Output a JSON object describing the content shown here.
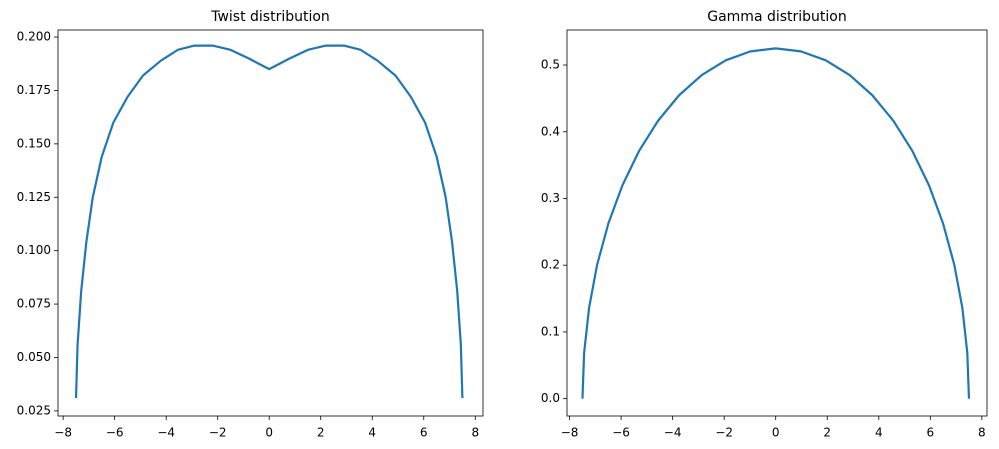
{
  "chart_data": [
    {
      "type": "line",
      "title": "Twist distribution",
      "x": [
        -7.5,
        -7.44,
        -7.3,
        -7.1,
        -6.85,
        -6.5,
        -6.05,
        -5.5,
        -4.9,
        -4.2,
        -3.55,
        -2.9,
        -2.2,
        -1.5,
        -0.8,
        0,
        0.8,
        1.5,
        2.2,
        2.9,
        3.55,
        4.2,
        4.9,
        5.5,
        6.05,
        6.5,
        6.85,
        7.1,
        7.3,
        7.44,
        7.5
      ],
      "series": [
        {
          "color": "#1f77b4",
          "values": [
            0.031,
            0.056,
            0.081,
            0.104,
            0.125,
            0.144,
            0.16,
            0.172,
            0.182,
            0.189,
            0.194,
            0.196,
            0.196,
            0.194,
            0.19,
            0.185,
            0.19,
            0.194,
            0.196,
            0.196,
            0.194,
            0.189,
            0.182,
            0.172,
            0.16,
            0.144,
            0.125,
            0.104,
            0.081,
            0.056,
            0.031
          ]
        }
      ],
      "xlim": [
        -8.2,
        8.3
      ],
      "xticks": [
        {
          "value": -8,
          "label": "−8"
        },
        {
          "value": -6,
          "label": "−6"
        },
        {
          "value": -4,
          "label": "−4"
        },
        {
          "value": -2,
          "label": "−2"
        },
        0,
        2,
        4,
        6,
        8
      ],
      "ylim": [
        0.0226,
        0.2033
      ],
      "yticks": [
        {
          "value": 0.025,
          "label": "0.025"
        },
        {
          "value": 0.05,
          "label": "0.050"
        },
        {
          "value": 0.075,
          "label": "0.075"
        },
        {
          "value": 0.1,
          "label": "0.100"
        },
        {
          "value": 0.125,
          "label": "0.125"
        },
        {
          "value": 0.15,
          "label": "0.150"
        },
        {
          "value": 0.175,
          "label": "0.175"
        },
        {
          "value": 0.2,
          "label": "0.200"
        }
      ]
    },
    {
      "type": "line",
      "title": "Gamma distribution",
      "x": [
        -7.5,
        -7.436,
        -7.244,
        -6.929,
        -6.495,
        -5.95,
        -5.303,
        -4.566,
        -3.75,
        -2.87,
        -1.941,
        -0.979,
        0,
        0.979,
        1.941,
        2.87,
        3.75,
        4.566,
        5.303,
        5.95,
        6.495,
        6.929,
        7.244,
        7.436,
        7.5
      ],
      "series": [
        {
          "color": "#1f77b4",
          "values": [
            0,
            0.0685,
            0.1359,
            0.2009,
            0.2625,
            0.3196,
            0.3712,
            0.4165,
            0.4547,
            0.485,
            0.5071,
            0.5205,
            0.525,
            0.5205,
            0.5071,
            0.485,
            0.4547,
            0.4165,
            0.3712,
            0.3196,
            0.2625,
            0.2009,
            0.1359,
            0.0685,
            0
          ]
        }
      ],
      "xlim": [
        -8.1,
        8.2
      ],
      "xticks": [
        {
          "value": -8,
          "label": "−8"
        },
        {
          "value": -6,
          "label": "−6"
        },
        {
          "value": -4,
          "label": "−4"
        },
        {
          "value": -2,
          "label": "−2"
        },
        0,
        2,
        4,
        6,
        8
      ],
      "ylim": [
        -0.026,
        0.5525
      ],
      "yticks": [
        {
          "value": 0,
          "label": "0.0"
        },
        0.1,
        0.2,
        0.3,
        0.4,
        0.5
      ]
    }
  ]
}
